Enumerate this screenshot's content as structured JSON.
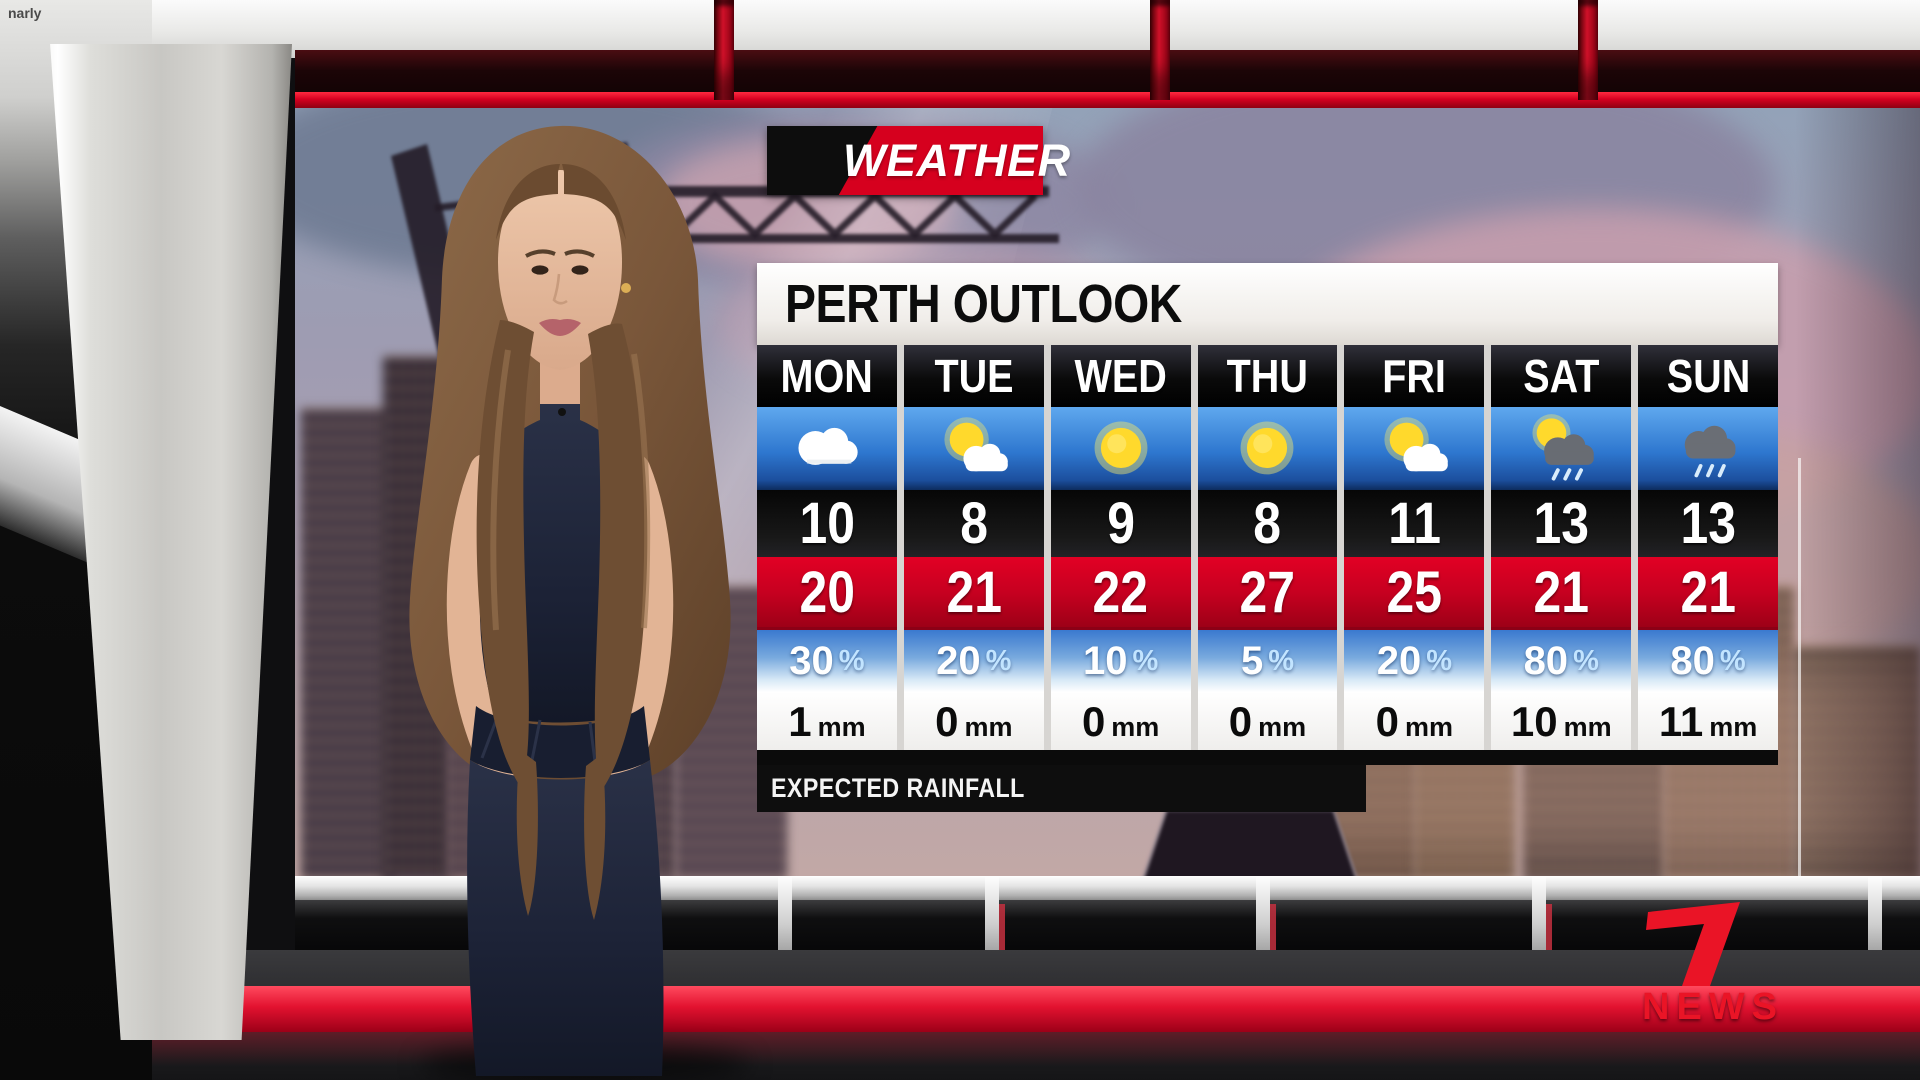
{
  "watermark": "narly",
  "banner": {
    "label": "WEATHER"
  },
  "forecast": {
    "title": "PERTH OUTLOOK",
    "footer_label": "EXPECTED RAINFALL",
    "units": {
      "rain_chance": "%",
      "rain_amount": "mm"
    },
    "days": [
      {
        "label": "MON",
        "icon": "cloudy",
        "min": "10",
        "max": "20",
        "rain_chance": "30",
        "rain_amount": "1"
      },
      {
        "label": "TUE",
        "icon": "partly-cloudy",
        "min": "8",
        "max": "21",
        "rain_chance": "20",
        "rain_amount": "0"
      },
      {
        "label": "WED",
        "icon": "sunny",
        "min": "9",
        "max": "22",
        "rain_chance": "10",
        "rain_amount": "0"
      },
      {
        "label": "THU",
        "icon": "sunny",
        "min": "8",
        "max": "27",
        "rain_chance": "5",
        "rain_amount": "0"
      },
      {
        "label": "FRI",
        "icon": "partly-cloudy",
        "min": "11",
        "max": "25",
        "rain_chance": "20",
        "rain_amount": "0"
      },
      {
        "label": "SAT",
        "icon": "sun-shower",
        "min": "13",
        "max": "21",
        "rain_chance": "80",
        "rain_amount": "10"
      },
      {
        "label": "SUN",
        "icon": "rain",
        "min": "13",
        "max": "21",
        "rain_chance": "80",
        "rain_amount": "11"
      }
    ]
  },
  "logo": {
    "icon": "seven-logo-icon",
    "wordmark": "NEWS"
  },
  "colors": {
    "banner_red": "#d6001e",
    "header_black": "#000000",
    "max_temp_red": "#c70020",
    "icon_row_blue": "#2e77cf",
    "logo_red": "#ea1426",
    "floor_stripe_red": "#e31230",
    "title_bar_white": "#f4f2ef"
  },
  "chart_data": {
    "type": "table",
    "title": "PERTH OUTLOOK",
    "columns": [
      "MON",
      "TUE",
      "WED",
      "THU",
      "FRI",
      "SAT",
      "SUN"
    ],
    "rows": [
      {
        "name": "conditions",
        "values": [
          "cloudy",
          "partly-cloudy",
          "sunny",
          "sunny",
          "partly-cloudy",
          "sun-shower",
          "rain"
        ]
      },
      {
        "name": "min_temp_c",
        "values": [
          10,
          8,
          9,
          8,
          11,
          13,
          13
        ]
      },
      {
        "name": "max_temp_c",
        "values": [
          20,
          21,
          22,
          27,
          25,
          21,
          21
        ]
      },
      {
        "name": "rain_chance_pct",
        "values": [
          30,
          20,
          10,
          5,
          20,
          80,
          80
        ]
      },
      {
        "name": "expected_rainfall_mm",
        "values": [
          1,
          0,
          0,
          0,
          0,
          10,
          11
        ]
      }
    ]
  }
}
